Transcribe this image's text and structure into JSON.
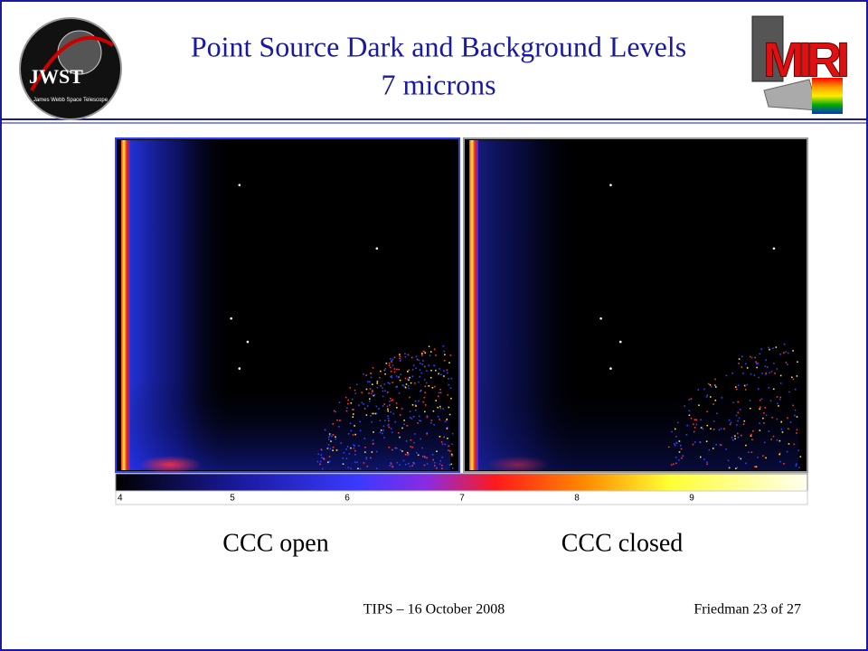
{
  "header": {
    "title_line1": "Point Source Dark and Background Levels",
    "title_line2": "7 microns",
    "left_logo": {
      "text": "JWST",
      "caption": "James Webb Space Telescope"
    },
    "right_logo": {
      "text": "MIRI"
    }
  },
  "figure": {
    "colorbar_labels": [
      "4",
      "5",
      "6",
      "7",
      "8",
      "9"
    ],
    "captions": [
      "CCC open",
      "CCC closed"
    ]
  },
  "footer": {
    "center": "TIPS – 16 October 2008",
    "right": "Friedman 23 of 27"
  }
}
